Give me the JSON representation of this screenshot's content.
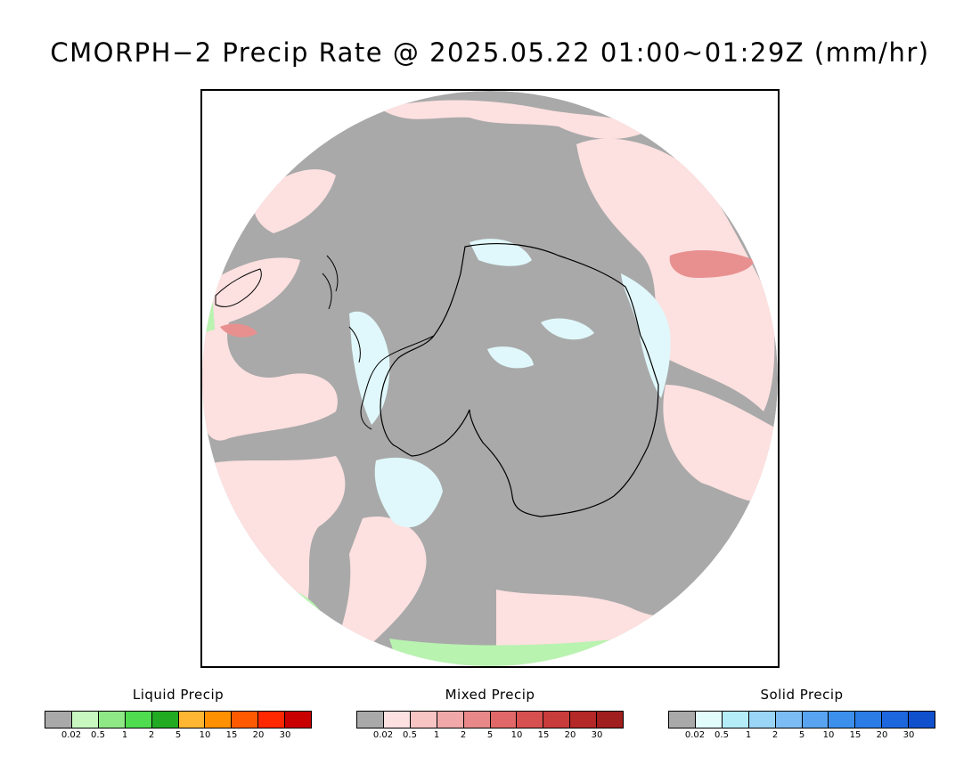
{
  "title": "CMORPH−2 Precip Rate @ 2025.05.22 01:00~01:29Z (mm/hr)",
  "map": {
    "projection": "south-polar-stereographic",
    "colors": {
      "no_precip": "#a9a9a9",
      "mixed_light": "#fde0e0",
      "mixed_medium": "#e89090",
      "snow_light": "#e0f8fb",
      "rain_light": "#b8f3b0",
      "rain_medium": "#2aae2a",
      "coast": "#000000",
      "outside": "#ffffff"
    }
  },
  "legends": [
    {
      "title": "Liquid Precip",
      "colors": [
        "#a9a9a9",
        "#c8f8c0",
        "#8ee886",
        "#4fdc4f",
        "#22aa22",
        "#ffb733",
        "#ff9000",
        "#ff5a00",
        "#ff2800",
        "#c80000"
      ],
      "ticks": [
        "0.02",
        "0.5",
        "1",
        "2",
        "5",
        "10",
        "15",
        "20",
        "30"
      ]
    },
    {
      "title": "Mixed Precip",
      "colors": [
        "#a9a9a9",
        "#fde0e0",
        "#f8c4c4",
        "#f0a8a8",
        "#e88888",
        "#e06868",
        "#d65050",
        "#c83c3c",
        "#b42828",
        "#a01e1e"
      ],
      "ticks": [
        "0.02",
        "0.5",
        "1",
        "2",
        "5",
        "10",
        "15",
        "20",
        "30"
      ]
    },
    {
      "title": "Solid Precip",
      "colors": [
        "#a9a9a9",
        "#e2fcfc",
        "#b4ecf8",
        "#9ad4f6",
        "#7cbcf4",
        "#58a4f0",
        "#3c90ec",
        "#2c7ce6",
        "#1c66de",
        "#1050cc"
      ],
      "ticks": [
        "0.02",
        "0.5",
        "1",
        "2",
        "5",
        "10",
        "15",
        "20",
        "30"
      ]
    }
  ]
}
